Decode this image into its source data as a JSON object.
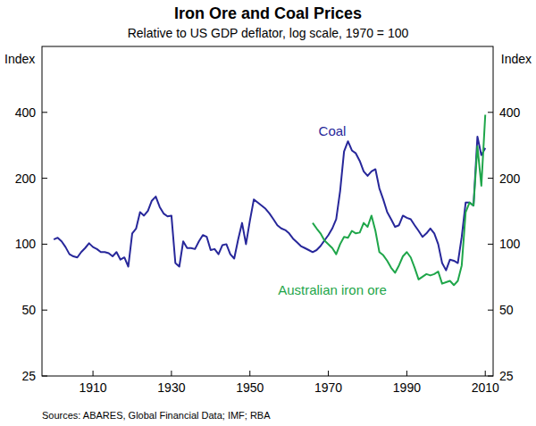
{
  "chart_data": {
    "type": "line",
    "title": "Iron Ore and Coal Prices",
    "subtitle": "Relative to US GDP deflator, log scale, 1970 = 100",
    "y_label": "Index",
    "y2_label": "Index",
    "source": "Sources: ABARES, Global Financial Data; IMF; RBA",
    "log": "y",
    "grid": false,
    "x": [
      1900,
      1901,
      1902,
      1903,
      1904,
      1905,
      1906,
      1907,
      1908,
      1909,
      1910,
      1911,
      1912,
      1913,
      1914,
      1915,
      1916,
      1917,
      1918,
      1919,
      1920,
      1921,
      1922,
      1923,
      1924,
      1925,
      1926,
      1927,
      1928,
      1929,
      1930,
      1931,
      1932,
      1933,
      1934,
      1935,
      1936,
      1937,
      1938,
      1939,
      1940,
      1941,
      1942,
      1943,
      1944,
      1945,
      1946,
      1947,
      1948,
      1949,
      1950,
      1951,
      1952,
      1953,
      1954,
      1955,
      1956,
      1957,
      1958,
      1959,
      1960,
      1961,
      1962,
      1963,
      1964,
      1965,
      1966,
      1967,
      1968,
      1969,
      1970,
      1971,
      1972,
      1973,
      1974,
      1975,
      1976,
      1977,
      1978,
      1979,
      1980,
      1981,
      1982,
      1983,
      1984,
      1985,
      1986,
      1987,
      1988,
      1989,
      1990,
      1991,
      1992,
      1993,
      1994,
      1995,
      1996,
      1997,
      1998,
      1999,
      2000,
      2001,
      2002,
      2003,
      2004,
      2005,
      2006,
      2007,
      2008,
      2009,
      2010
    ],
    "xlim": [
      1897,
      2012
    ],
    "xticks": [
      1910,
      1930,
      1950,
      1970,
      1990,
      2010
    ],
    "ylim": [
      25,
      800
    ],
    "yticks": [
      25,
      50,
      100,
      200,
      400
    ],
    "series": [
      {
        "name": "Coal",
        "color": "#27279a",
        "values": [
          105,
          107,
          103,
          97,
          90,
          88,
          87,
          92,
          96,
          101,
          97,
          95,
          92,
          92,
          91,
          88,
          92,
          85,
          87,
          79,
          112,
          118,
          140,
          135,
          142,
          158,
          165,
          148,
          138,
          134,
          135,
          82,
          79,
          103,
          96,
          96,
          95,
          103,
          110,
          108,
          94,
          95,
          90,
          99,
          100,
          90,
          86,
          105,
          125,
          100,
          128,
          160,
          155,
          150,
          145,
          138,
          130,
          122,
          118,
          116,
          112,
          106,
          102,
          98,
          96,
          94,
          92,
          94,
          98,
          104,
          110,
          118,
          130,
          175,
          265,
          295,
          268,
          260,
          240,
          215,
          205,
          215,
          220,
          180,
          160,
          140,
          130,
          120,
          122,
          135,
          132,
          130,
          122,
          115,
          108,
          112,
          118,
          112,
          100,
          82,
          76,
          85,
          84,
          82,
          108,
          155,
          155,
          150,
          310,
          255,
          275
        ]
      },
      {
        "name": "Australian iron ore",
        "color": "#1fa64a",
        "values": [
          null,
          null,
          null,
          null,
          null,
          null,
          null,
          null,
          null,
          null,
          null,
          null,
          null,
          null,
          null,
          null,
          null,
          null,
          null,
          null,
          null,
          null,
          null,
          null,
          null,
          null,
          null,
          null,
          null,
          null,
          null,
          null,
          null,
          null,
          null,
          null,
          null,
          null,
          null,
          null,
          null,
          null,
          null,
          null,
          null,
          null,
          null,
          null,
          null,
          null,
          null,
          null,
          null,
          null,
          null,
          null,
          null,
          null,
          null,
          null,
          null,
          null,
          null,
          null,
          null,
          null,
          125,
          118,
          112,
          104,
          100,
          96,
          90,
          100,
          108,
          107,
          115,
          112,
          113,
          125,
          120,
          135,
          115,
          92,
          89,
          84,
          78,
          74,
          80,
          88,
          92,
          87,
          78,
          69,
          71,
          73,
          72,
          73,
          75,
          66,
          67,
          68,
          65,
          68,
          80,
          140,
          155,
          150,
          280,
          185,
          390
        ]
      }
    ]
  }
}
